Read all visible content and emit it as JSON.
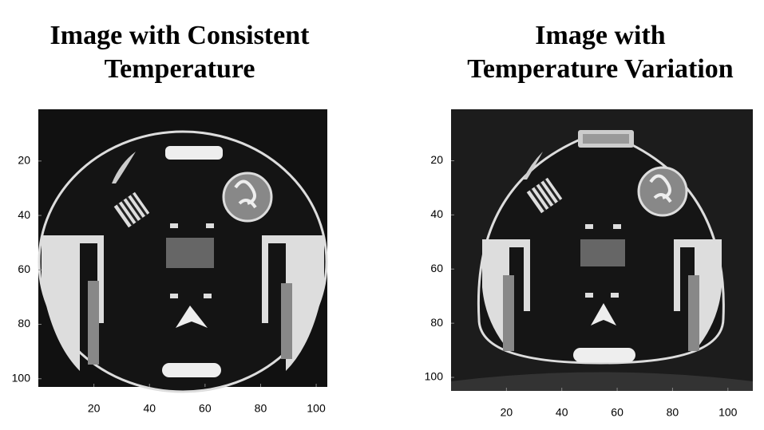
{
  "panels": [
    {
      "title": [
        "Image with Consistent",
        "Temperature"
      ],
      "xlim": [
        0,
        104
      ],
      "ylim": [
        1,
        103
      ],
      "xticks": [
        20,
        40,
        60,
        80,
        100
      ],
      "yticks": [
        20,
        40,
        60,
        80,
        100
      ]
    },
    {
      "title": [
        "Image with",
        "Temperature Variation"
      ],
      "xlim": [
        0,
        109
      ],
      "ylim": [
        1,
        105
      ],
      "xticks": [
        20,
        40,
        60,
        80,
        100
      ],
      "yticks": [
        20,
        40,
        60,
        80,
        100
      ]
    }
  ]
}
